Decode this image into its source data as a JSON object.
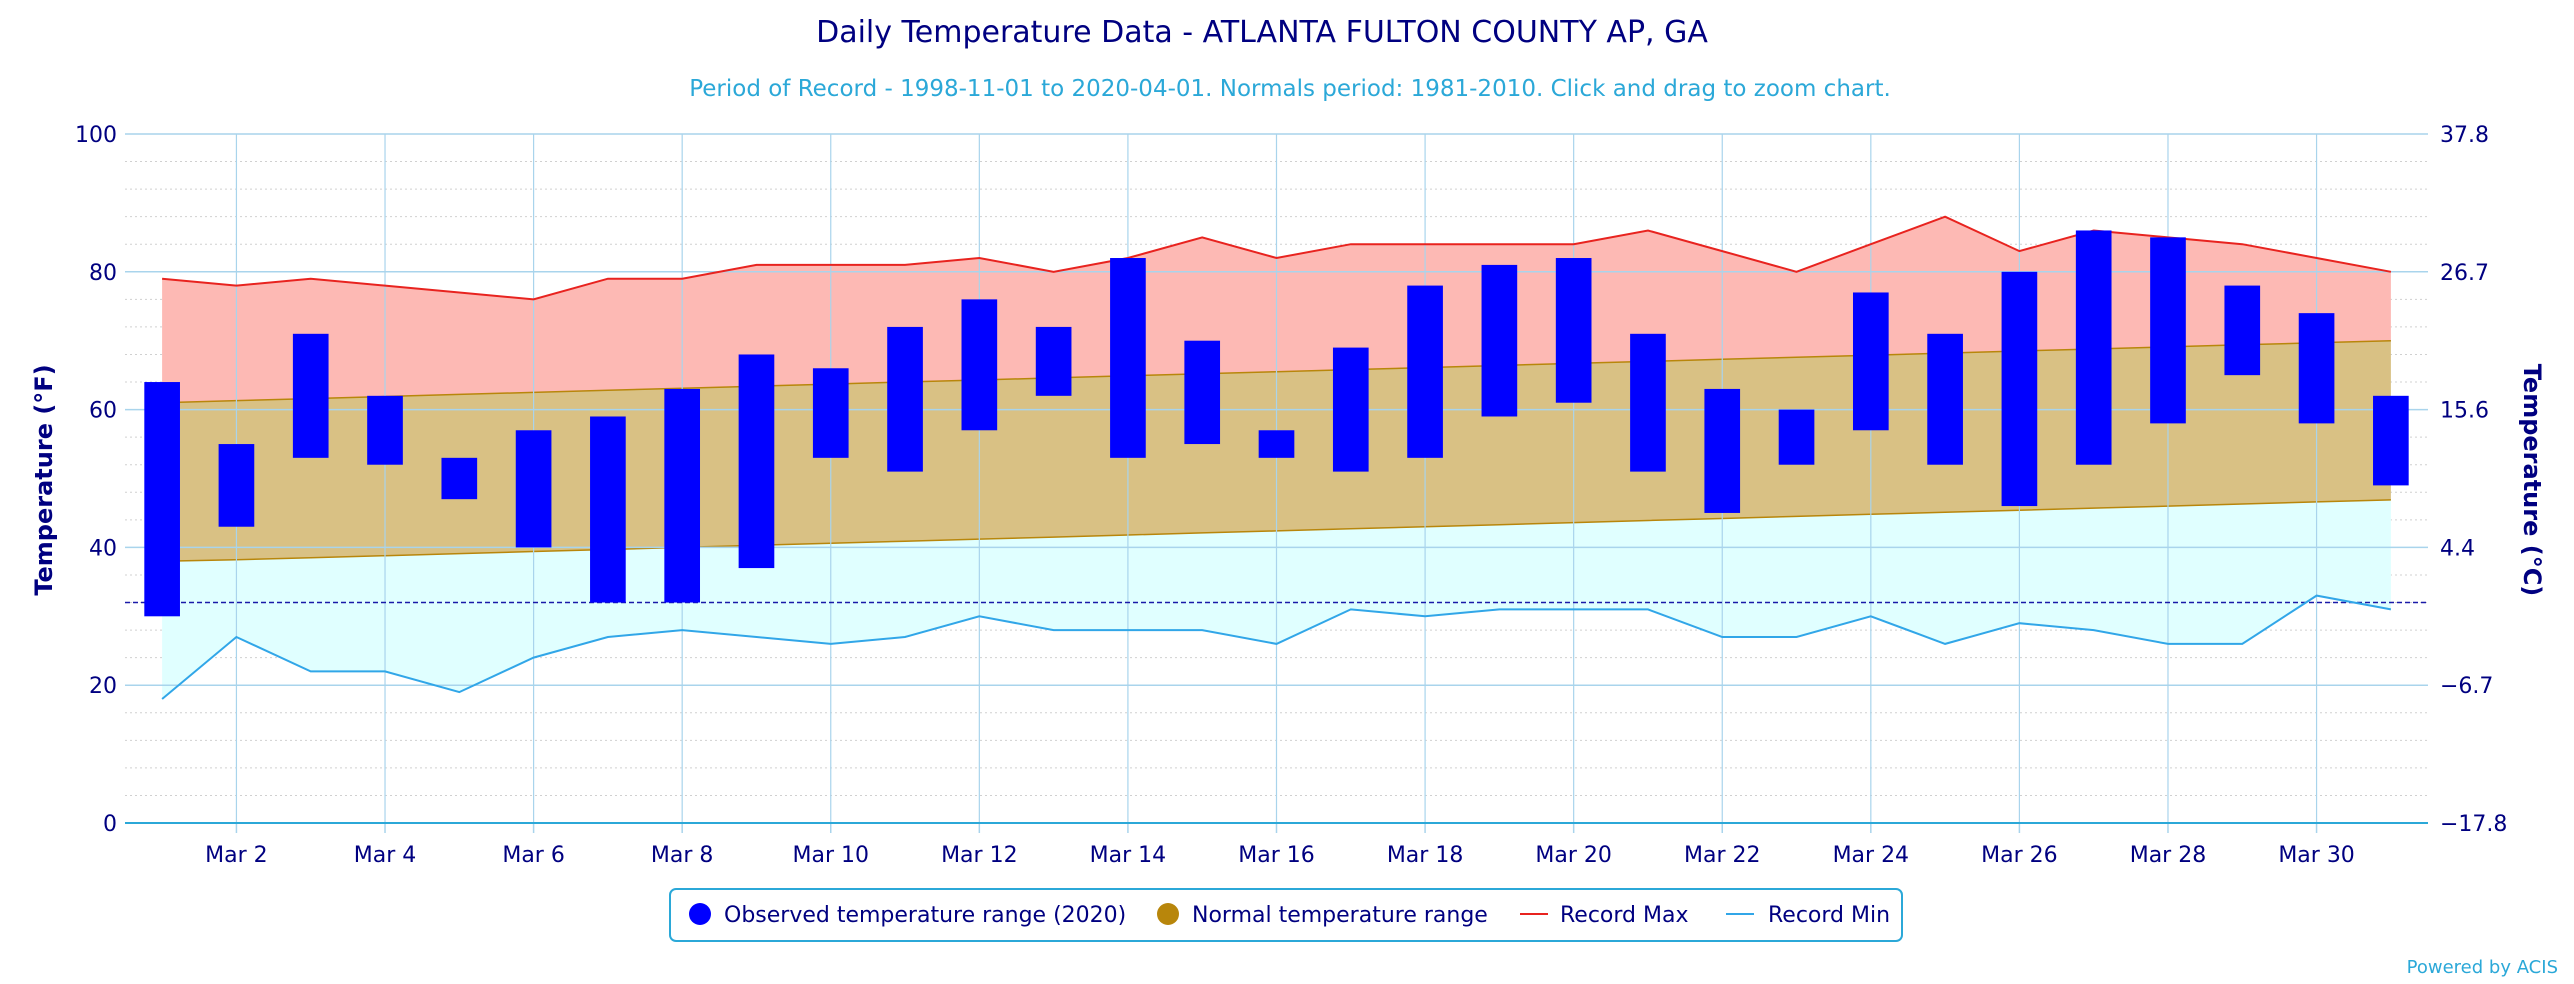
{
  "chart_data": {
    "type": "bar",
    "title": "Daily Temperature Data - ATLANTA FULTON COUNTY AP, GA",
    "subtitle": "Period of Record - 1998-11-01 to 2020-04-01. Normals period: 1981-2010. Click and drag to zoom chart.",
    "ylabel": "Temperature (°F)",
    "ylabel_right": "Temperature (°C)",
    "ylim": [
      0,
      100
    ],
    "y_ticks": [
      "0",
      "20",
      "40",
      "60",
      "80",
      "100"
    ],
    "y_ticks_right": [
      "−17.8",
      "−6.7",
      "4.4",
      "15.6",
      "26.7",
      "37.8"
    ],
    "x_tick_labels": [
      "Mar 2",
      "Mar 4",
      "Mar 6",
      "Mar 8",
      "Mar 10",
      "Mar 12",
      "Mar 14",
      "Mar 16",
      "Mar 18",
      "Mar 20",
      "Mar 22",
      "Mar 24",
      "Mar 26",
      "Mar 28",
      "Mar 30"
    ],
    "freezing_line_f": 32,
    "days": [
      1,
      2,
      3,
      4,
      5,
      6,
      7,
      8,
      9,
      10,
      11,
      12,
      13,
      14,
      15,
      16,
      17,
      18,
      19,
      20,
      21,
      22,
      23,
      24,
      25,
      26,
      27,
      28,
      29,
      30,
      31
    ],
    "series": [
      {
        "name": "Observed temperature range (2020)",
        "type": "columnrange",
        "low": [
          30,
          43,
          53,
          52,
          47,
          40,
          32,
          32,
          37,
          53,
          51,
          57,
          62,
          53,
          55,
          53,
          51,
          53,
          59,
          61,
          51,
          45,
          52,
          57,
          52,
          46,
          52,
          58,
          65,
          58,
          49
        ],
        "high": [
          64,
          55,
          71,
          62,
          53,
          57,
          59,
          63,
          68,
          66,
          72,
          76,
          72,
          82,
          70,
          57,
          69,
          78,
          81,
          82,
          71,
          63,
          60,
          77,
          71,
          80,
          86,
          85,
          78,
          74,
          62
        ]
      },
      {
        "name": "Normal temperature range",
        "type": "arearange",
        "low": [
          38,
          38.2,
          38.5,
          38.8,
          39.1,
          39.4,
          39.7,
          40,
          40.3,
          40.6,
          40.9,
          41.2,
          41.5,
          41.8,
          42.1,
          42.4,
          42.7,
          43,
          43.3,
          43.6,
          43.9,
          44.2,
          44.5,
          44.8,
          45.1,
          45.4,
          45.7,
          46,
          46.3,
          46.6,
          46.9
        ],
        "high": [
          61,
          61.3,
          61.6,
          61.9,
          62.2,
          62.5,
          62.8,
          63.1,
          63.4,
          63.7,
          64,
          64.3,
          64.6,
          64.9,
          65.2,
          65.5,
          65.8,
          66.1,
          66.4,
          66.7,
          67,
          67.3,
          67.6,
          67.9,
          68.2,
          68.5,
          68.8,
          69.1,
          69.4,
          69.7,
          70
        ]
      },
      {
        "name": "Record Max",
        "type": "line",
        "values": [
          79,
          78,
          79,
          78,
          77,
          76,
          79,
          79,
          81,
          81,
          81,
          82,
          80,
          82,
          85,
          82,
          84,
          84,
          84,
          84,
          86,
          83,
          80,
          84,
          88,
          83,
          86,
          85,
          84,
          82,
          80
        ]
      },
      {
        "name": "Record Min",
        "type": "line",
        "values": [
          18,
          27,
          22,
          22,
          19,
          24,
          27,
          28,
          27,
          26,
          27,
          30,
          28,
          28,
          28,
          26,
          31,
          30,
          31,
          31,
          31,
          27,
          27,
          30,
          26,
          29,
          28,
          26,
          26,
          33,
          31
        ]
      }
    ],
    "legend_position": "bottom-center",
    "grid": true,
    "colors": {
      "observed": "#0000ff",
      "normal_legend": "#b8860b",
      "normal_fill": "#d9c184",
      "record_max_line": "#e8231f",
      "record_max_fill": "#fdb9b4",
      "record_min_line": "#31a6e8",
      "record_min_fill": "#e0ffff",
      "title": "#000080",
      "subtitle": "#2ba8d8",
      "grid": "#a9d4ec",
      "freezing": "#1a1aa8"
    },
    "credit": "Powered by ACIS"
  }
}
